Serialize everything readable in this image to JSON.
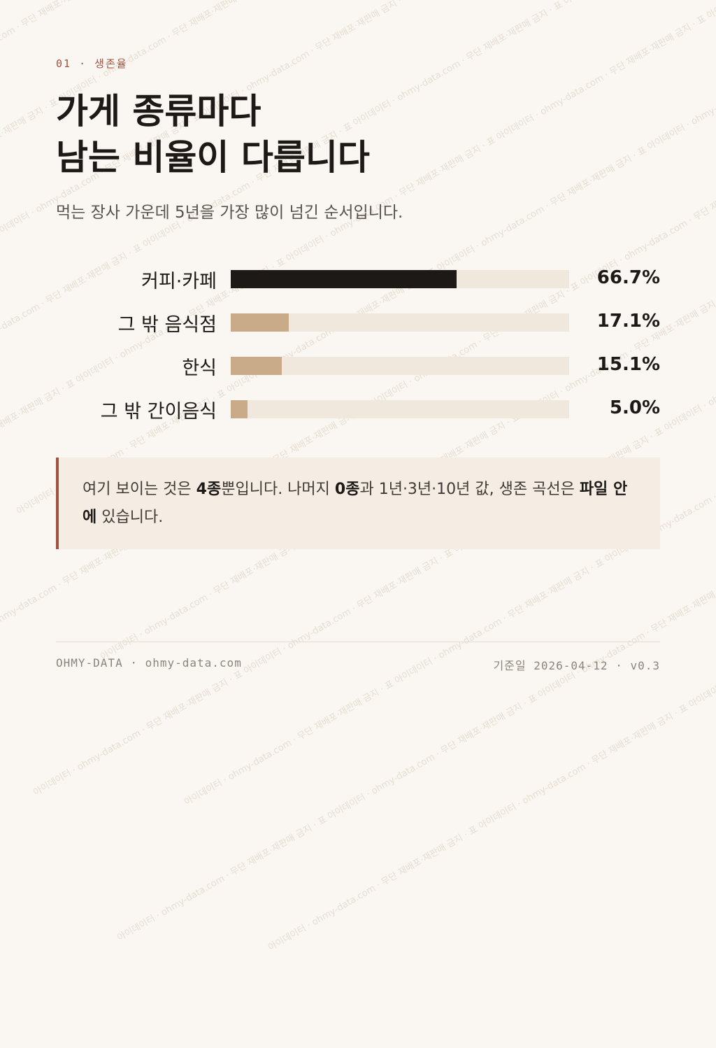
{
  "eyebrow": "01 · 생존율",
  "title": "가게 종류마다\n남는 비율이 다릅니다",
  "subtitle": "먹는 장사 가운데 5년을 가장 많이 넘긴 순서입니다.",
  "watermark": "아이데이터 · ohmy-data.com · 무단 재배포·재판매 금지 · 표",
  "colors": {
    "accent": "#a0523d",
    "top_bar": "#1c1917",
    "bar": "#c9ab8a",
    "track": "#f0e8dc"
  },
  "chart_data": {
    "type": "bar",
    "orientation": "horizontal",
    "categories": [
      "커피·카페",
      "그 밖 음식점",
      "한식",
      "그 밖 간이음식"
    ],
    "values": [
      66.7,
      17.1,
      15.1,
      5.0
    ],
    "value_labels": [
      "66.7%",
      "17.1%",
      "15.1%",
      "5.0%"
    ],
    "xlim": [
      0,
      100
    ],
    "unit": "%",
    "grid": false,
    "legend": "none"
  },
  "note": {
    "t1": "여기 보이는 것은 ",
    "b1": "4종",
    "t2": "뿐입니다. 나머지 ",
    "b2": "0종",
    "t3": "과 1년·3년·10년 값, 생존 곡선은 ",
    "b3": "파일 안에",
    "t4": " 있습니다."
  },
  "footer": {
    "left": "OHMY-DATA · ohmy-data.com",
    "right": "기준일 2026-04-12 · v0.3"
  }
}
